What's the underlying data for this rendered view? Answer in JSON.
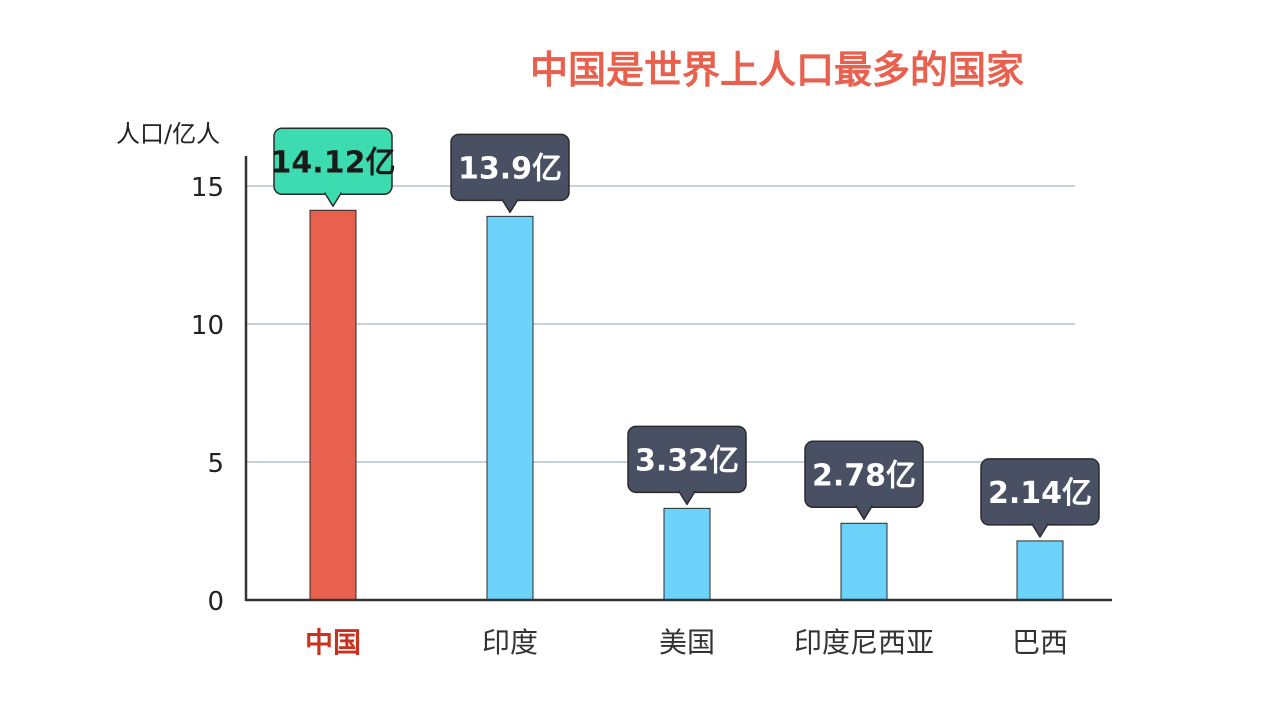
{
  "chart_data": {
    "type": "bar",
    "title": "中国是世界上人口最多的国家",
    "ylabel": "人口/亿人",
    "xlabel": "",
    "categories": [
      "中国",
      "印度",
      "美国",
      "印度尼西亚",
      "巴西"
    ],
    "values": [
      14.12,
      13.9,
      3.32,
      2.78,
      2.14
    ],
    "data_labels": [
      "14.12亿",
      "13.9亿",
      "3.32亿",
      "2.78亿",
      "2.14亿"
    ],
    "ylim": [
      0,
      15
    ],
    "yticks": [
      "0",
      "5",
      "10",
      "15"
    ],
    "ytick_values": [
      0,
      5,
      10,
      15
    ],
    "grid": true,
    "highlight_index": 0
  },
  "colors": {
    "title": "#e8614f",
    "highlight_bar": "#e8614f",
    "bar": "#6dd3fb",
    "highlight_label_bg": "#3ddbb0",
    "label_bg": "#4a5064",
    "highlight_label_text": "#1a1a1a",
    "label_text": "#ffffff",
    "highlight_category": "#c8321e",
    "category": "#333333",
    "grid": "#8ea3b5",
    "axis": "#333333"
  }
}
